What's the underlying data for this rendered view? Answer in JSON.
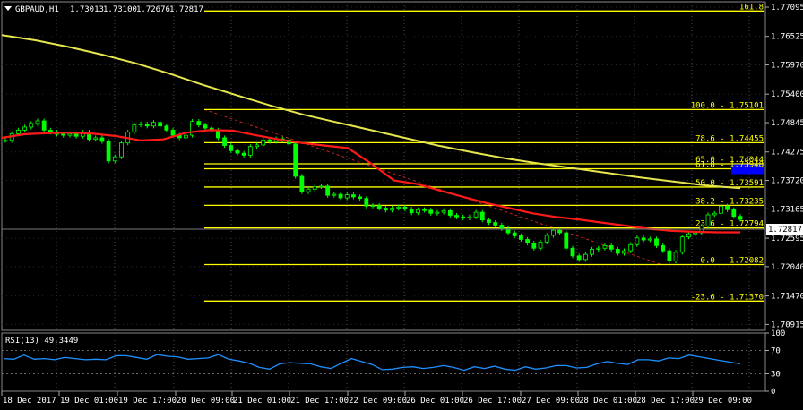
{
  "window": {
    "symbol_label": "GBPAUD,H1",
    "ohlc": [
      "1.73013",
      "1.73100",
      "1.72676",
      "1.72817"
    ],
    "current_price": "1.72817",
    "rsi_label": "RSI(13) 49.3449"
  },
  "colors": {
    "background": "#000000",
    "grid": "#4d4d4d",
    "text": "#ffffff",
    "candle_up": "#00ff00",
    "fib": "#ffff00",
    "ma_fast": "#ff1a1a",
    "ma_slow": "#e6e64d",
    "rsi": "#1e90ff",
    "highlight": "#0000ff"
  },
  "price_axis": {
    "ticks": [
      "1.77095",
      "1.76525",
      "1.75970",
      "1.75400",
      "1.74845",
      "1.74275",
      "1.73720",
      "1.73165",
      "1.72595",
      "1.72040",
      "1.71470",
      "1.70915"
    ]
  },
  "rsi_axis": {
    "ticks": [
      "100",
      "70",
      "30",
      "0"
    ],
    "levels": [
      70,
      30
    ]
  },
  "time_axis": {
    "labels": [
      "18 Dec 2017",
      "19 Dec 01:00",
      "19 Dec 17:00",
      "20 Dec 09:00",
      "21 Dec 01:00",
      "21 Dec 17:00",
      "22 Dec 09:00",
      "26 Dec 01:00",
      "26 Dec 17:00",
      "27 Dec 09:00",
      "28 Dec 01:00",
      "28 Dec 17:00",
      "29 Dec 09:00"
    ]
  },
  "fibonacci": [
    {
      "label": "161.8",
      "price": 1.7702
    },
    {
      "label": "100.0 - 1.75101",
      "price": 1.75101
    },
    {
      "label": "78.6 - 1.74455",
      "price": 1.74455
    },
    {
      "label": "65.0 - 1.74044",
      "price": 1.74044
    },
    {
      "label": "61.8 - 1.73948",
      "price": 1.73948
    },
    {
      "label": "50.0 - 1.73591",
      "price": 1.73591
    },
    {
      "label": "38.2 - 1.73235",
      "price": 1.73235
    },
    {
      "label": "23.6 - 1.72794",
      "price": 1.72794
    },
    {
      "label": "0.0 - 1.72082",
      "price": 1.72082
    },
    {
      "label": "-23.6 - 1.71370",
      "price": 1.7137
    }
  ],
  "chart_data": {
    "type": "line",
    "title": "GBPAUD,H1",
    "ylim": [
      1.708,
      1.772
    ],
    "rsi_ylim": [
      0,
      100
    ],
    "series": [
      {
        "values": [
          1.745,
          1.7463,
          1.747,
          1.7476,
          1.7483,
          1.7488,
          1.747,
          1.7466,
          1.7462,
          1.746,
          1.7463,
          1.7458,
          1.7466,
          1.7452,
          1.7455,
          1.7448,
          1.741,
          1.7418,
          1.7445,
          1.7466,
          1.748,
          1.7482,
          1.7478,
          1.7485,
          1.7478,
          1.747,
          1.746,
          1.7455,
          1.746,
          1.7487,
          1.748,
          1.7474,
          1.747,
          1.7455,
          1.744,
          1.743,
          1.7425,
          1.7421,
          1.7438,
          1.7441,
          1.7451,
          1.7448,
          1.7453,
          1.7451,
          1.7443,
          1.738,
          1.735,
          1.7355,
          1.736,
          1.7361,
          1.7343,
          1.7345,
          1.7338,
          1.7344,
          1.734,
          1.7337,
          1.7322,
          1.7323,
          1.7318,
          1.7314,
          1.7318,
          1.732,
          1.7316,
          1.7309,
          1.7315,
          1.7314,
          1.7308,
          1.731,
          1.7313,
          1.7304,
          1.7301,
          1.7299,
          1.7301,
          1.731,
          1.7295,
          1.729,
          1.7285,
          1.7278,
          1.727,
          1.7264,
          1.7257,
          1.725,
          1.724,
          1.7252,
          1.7265,
          1.7275,
          1.727,
          1.724,
          1.7225,
          1.7218,
          1.7228,
          1.7238,
          1.724,
          1.7245,
          1.7238,
          1.723,
          1.7235,
          1.7247,
          1.726,
          1.7256,
          1.7258,
          1.7245,
          1.7235,
          1.7215,
          1.7232,
          1.7262,
          1.7268,
          1.727,
          1.7283,
          1.7305,
          1.7308,
          1.7322,
          1.7315,
          1.7302,
          1.7296
        ]
      },
      {
        "values": [
          1.7455,
          1.7462,
          1.7464,
          1.7465,
          1.7463,
          1.7458,
          1.745,
          1.7452,
          1.7465,
          1.747,
          1.7469,
          1.746,
          1.7452,
          1.7445,
          1.744,
          1.7435,
          1.7405,
          1.7372,
          1.7365,
          1.7352,
          1.734,
          1.7328,
          1.7318,
          1.7308,
          1.7301,
          1.7296,
          1.729,
          1.7284,
          1.7278,
          1.7274,
          1.7272,
          1.7271,
          1.7271
        ]
      },
      {
        "values": [
          1.7655,
          1.7645,
          1.7632,
          1.7617,
          1.76,
          1.758,
          1.7558,
          1.7538,
          1.7518,
          1.75,
          1.7485,
          1.747,
          1.7455,
          1.744,
          1.7427,
          1.7415,
          1.7405,
          1.7396,
          1.7387,
          1.7378,
          1.737,
          1.7362,
          1.7357
        ]
      },
      {
        "values": [
          56,
          55,
          62,
          55,
          56,
          54,
          58,
          56,
          54,
          55,
          54,
          61,
          61,
          58,
          55,
          63,
          60,
          59,
          55,
          56,
          57,
          63,
          55,
          52,
          48,
          41,
          38,
          47,
          49,
          48,
          47,
          42,
          39,
          48,
          56,
          51,
          46,
          37,
          38,
          41,
          42,
          39,
          41,
          44,
          41,
          36,
          42,
          39,
          43,
          38,
          36,
          42,
          38,
          40,
          44,
          44,
          40,
          41,
          47,
          51,
          48,
          46,
          54,
          54,
          52,
          57,
          56,
          62,
          59,
          56,
          53,
          50,
          47
        ]
      }
    ]
  }
}
